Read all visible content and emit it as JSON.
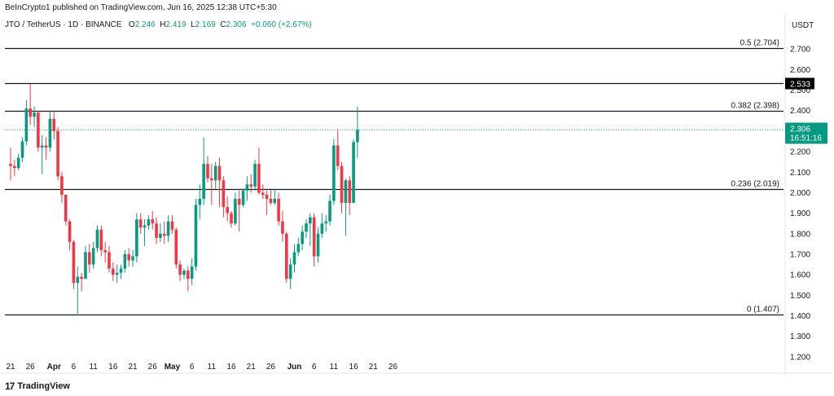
{
  "header": {
    "publisher": "BeInCrypto1 published on TradingView.com, Jun 16, 2025 12:38 UTC+5:30",
    "symbol": "JTO / TetherUS · 1D · BINANCE",
    "o_label": "O",
    "o_value": "2.246",
    "h_label": "H",
    "h_value": "2.419",
    "l_label": "L",
    "l_value": "2.169",
    "c_label": "C",
    "c_value": "2.306",
    "change": "+0.060 (+2.67%)",
    "currency": "USDT"
  },
  "brand": {
    "logo": "17",
    "name": "TradingView"
  },
  "colors": {
    "up": "#089981",
    "down": "#f23645",
    "line": "#131722",
    "price_line": "#089981",
    "highlight_bg": "#000000"
  },
  "chart_data": {
    "type": "candlestick",
    "ylim": [
      1.16,
      2.78
    ],
    "y_ticks": [
      "2.700",
      "2.600",
      "2.500",
      "2.400",
      "2.300",
      "2.200",
      "2.100",
      "2.000",
      "1.900",
      "1.800",
      "1.700",
      "1.600",
      "1.500",
      "1.400",
      "1.300",
      "1.200"
    ],
    "x_ticks": [
      "21",
      "26",
      "Apr",
      "6",
      "11",
      "16",
      "21",
      "26",
      "May",
      "6",
      "11",
      "16",
      "21",
      "26",
      "Jun",
      "6",
      "11",
      "16",
      "21",
      "26"
    ],
    "x_tick_days": [
      0,
      5,
      11,
      16,
      21,
      26,
      31,
      36,
      41,
      46,
      51,
      56,
      61,
      66,
      72,
      77,
      82,
      87,
      92,
      97
    ],
    "horizontal_levels": [
      {
        "label": "0.5 (2.704)",
        "value": 2.704
      },
      {
        "label": "0.382 (2.398)",
        "value": 2.398
      },
      {
        "label": "0.236 (2.019)",
        "value": 2.019
      },
      {
        "label": "0 (1.407)",
        "value": 1.407
      }
    ],
    "highlight_level": {
      "label": "2.533",
      "value": 2.533
    },
    "current_price": {
      "value": 2.306,
      "label": "2.306",
      "countdown": "16:51:16"
    },
    "candles": [
      [
        2.14,
        2.22,
        2.06,
        2.13
      ],
      [
        2.13,
        2.16,
        2.08,
        2.12
      ],
      [
        2.12,
        2.19,
        2.11,
        2.17
      ],
      [
        2.17,
        2.27,
        2.15,
        2.25
      ],
      [
        2.25,
        2.45,
        2.23,
        2.41
      ],
      [
        2.41,
        2.53,
        2.33,
        2.37
      ],
      [
        2.37,
        2.42,
        2.32,
        2.39
      ],
      [
        2.39,
        2.4,
        2.2,
        2.22
      ],
      [
        2.22,
        2.28,
        2.09,
        2.23
      ],
      [
        2.23,
        2.27,
        2.16,
        2.22
      ],
      [
        2.22,
        2.4,
        2.2,
        2.36
      ],
      [
        2.36,
        2.4,
        2.26,
        2.3
      ],
      [
        2.3,
        2.32,
        2.06,
        2.08
      ],
      [
        2.08,
        2.1,
        1.95,
        1.99
      ],
      [
        1.99,
        1.99,
        1.84,
        1.86
      ],
      [
        1.86,
        1.87,
        1.72,
        1.76
      ],
      [
        1.76,
        1.77,
        1.53,
        1.56
      ],
      [
        1.56,
        1.64,
        1.41,
        1.59
      ],
      [
        1.59,
        1.61,
        1.52,
        1.58
      ],
      [
        1.58,
        1.74,
        1.58,
        1.71
      ],
      [
        1.71,
        1.75,
        1.61,
        1.65
      ],
      [
        1.65,
        1.76,
        1.63,
        1.73
      ],
      [
        1.73,
        1.84,
        1.71,
        1.82
      ],
      [
        1.82,
        1.84,
        1.69,
        1.72
      ],
      [
        1.72,
        1.76,
        1.66,
        1.71
      ],
      [
        1.71,
        1.74,
        1.61,
        1.63
      ],
      [
        1.63,
        1.66,
        1.57,
        1.6
      ],
      [
        1.6,
        1.65,
        1.56,
        1.61
      ],
      [
        1.61,
        1.65,
        1.58,
        1.63
      ],
      [
        1.63,
        1.72,
        1.61,
        1.7
      ],
      [
        1.7,
        1.73,
        1.64,
        1.67
      ],
      [
        1.67,
        1.72,
        1.64,
        1.69
      ],
      [
        1.69,
        1.9,
        1.66,
        1.87
      ],
      [
        1.87,
        1.9,
        1.8,
        1.83
      ],
      [
        1.83,
        1.87,
        1.74,
        1.84
      ],
      [
        1.84,
        1.89,
        1.82,
        1.87
      ],
      [
        1.87,
        1.91,
        1.82,
        1.85
      ],
      [
        1.85,
        1.88,
        1.75,
        1.78
      ],
      [
        1.78,
        1.85,
        1.76,
        1.8
      ],
      [
        1.8,
        1.86,
        1.75,
        1.79
      ],
      [
        1.79,
        1.89,
        1.76,
        1.86
      ],
      [
        1.86,
        1.89,
        1.8,
        1.82
      ],
      [
        1.82,
        1.83,
        1.63,
        1.65
      ],
      [
        1.65,
        1.67,
        1.57,
        1.6
      ],
      [
        1.6,
        1.63,
        1.58,
        1.62
      ],
      [
        1.62,
        1.64,
        1.52,
        1.58
      ],
      [
        1.58,
        1.68,
        1.55,
        1.64
      ],
      [
        1.64,
        1.97,
        1.62,
        1.94
      ],
      [
        1.94,
        2.04,
        1.87,
        1.97
      ],
      [
        1.97,
        2.27,
        1.94,
        2.14
      ],
      [
        2.14,
        2.18,
        2.05,
        2.07
      ],
      [
        2.07,
        2.14,
        1.94,
        2.06
      ],
      [
        2.06,
        2.15,
        2.02,
        2.13
      ],
      [
        2.13,
        2.17,
        1.93,
        2.06
      ],
      [
        2.06,
        2.08,
        1.88,
        1.93
      ],
      [
        1.93,
        1.98,
        1.86,
        1.9
      ],
      [
        1.9,
        1.91,
        1.83,
        1.85
      ],
      [
        1.85,
        2.0,
        1.84,
        1.97
      ],
      [
        1.97,
        2.01,
        1.81,
        1.94
      ],
      [
        1.94,
        2.02,
        1.93,
        2.01
      ],
      [
        2.01,
        2.08,
        1.96,
        2.04
      ],
      [
        2.04,
        2.09,
        2.0,
        2.03
      ],
      [
        2.03,
        2.16,
        2.01,
        2.14
      ],
      [
        2.14,
        2.22,
        1.99,
        2.0
      ],
      [
        2.0,
        2.04,
        1.97,
        1.99
      ],
      [
        1.99,
        2.01,
        1.89,
        1.97
      ],
      [
        1.97,
        2.02,
        1.94,
        1.95
      ],
      [
        1.95,
        2.02,
        1.94,
        1.97
      ],
      [
        1.97,
        2.0,
        1.84,
        1.86
      ],
      [
        1.86,
        1.91,
        1.76,
        1.8
      ],
      [
        1.8,
        1.81,
        1.56,
        1.58
      ],
      [
        1.58,
        1.68,
        1.53,
        1.65
      ],
      [
        1.65,
        1.75,
        1.61,
        1.71
      ],
      [
        1.71,
        1.78,
        1.69,
        1.75
      ],
      [
        1.75,
        1.84,
        1.72,
        1.81
      ],
      [
        1.81,
        1.87,
        1.78,
        1.85
      ],
      [
        1.85,
        1.9,
        1.74,
        1.88
      ],
      [
        1.88,
        1.9,
        1.64,
        1.69
      ],
      [
        1.69,
        1.83,
        1.66,
        1.8
      ],
      [
        1.8,
        1.9,
        1.78,
        1.85
      ],
      [
        1.85,
        1.89,
        1.81,
        1.86
      ],
      [
        1.86,
        1.99,
        1.84,
        1.96
      ],
      [
        1.96,
        2.26,
        1.94,
        2.23
      ],
      [
        2.23,
        2.31,
        2.11,
        2.13
      ],
      [
        2.13,
        2.15,
        1.9,
        1.95
      ],
      [
        1.95,
        2.07,
        1.79,
        2.06
      ],
      [
        2.06,
        2.08,
        1.89,
        1.95
      ],
      [
        1.95,
        2.26,
        1.95,
        2.246
      ],
      [
        2.246,
        2.419,
        2.169,
        2.306
      ]
    ]
  }
}
